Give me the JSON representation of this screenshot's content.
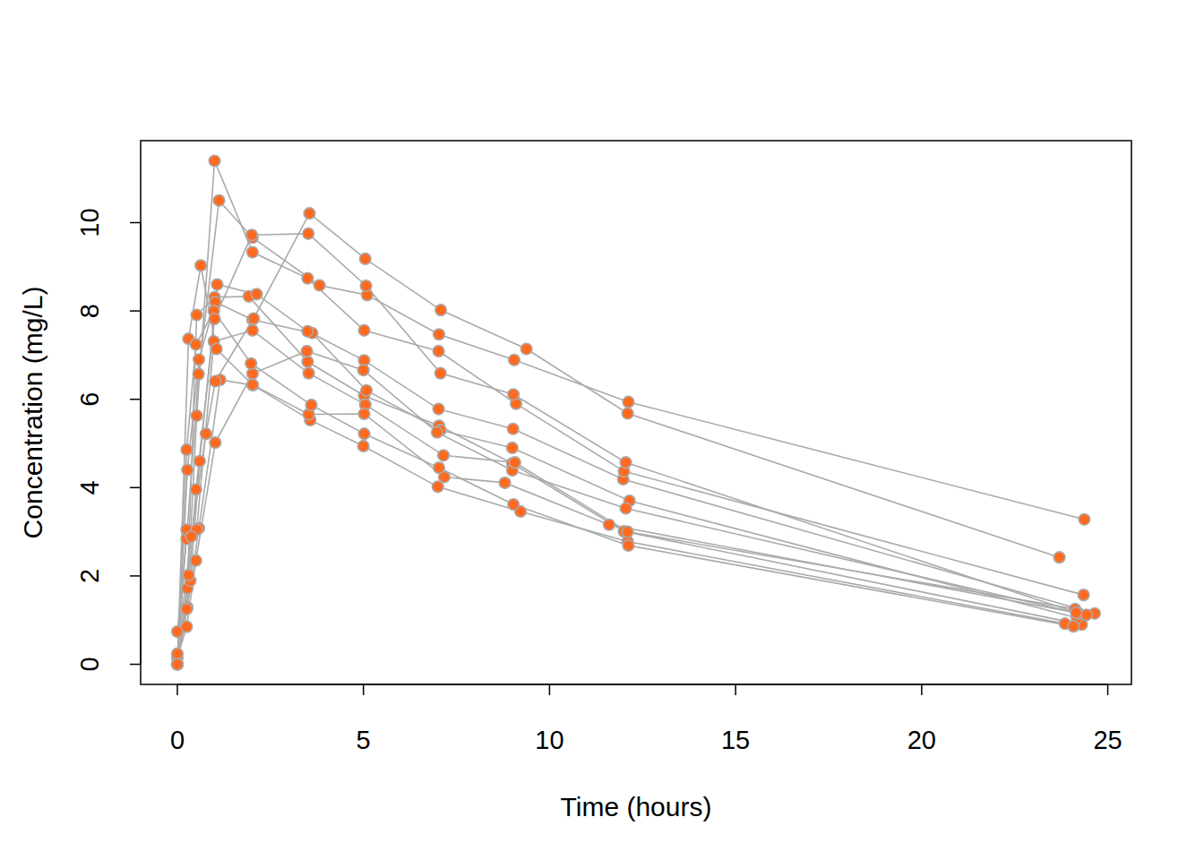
{
  "chart_data": {
    "type": "line",
    "x_label": "Time (hours)",
    "y_label": "Concentration (mg/L)",
    "xlim": [
      -0.986,
      25.636
    ],
    "ylim": [
      -0.456,
      11.856
    ],
    "xticks": [
      0,
      5,
      10,
      15,
      20,
      25
    ],
    "yticks": [
      0,
      2,
      4,
      6,
      8,
      10
    ],
    "grid": false,
    "marker": "circle",
    "line_style": "solid",
    "series": [
      {
        "color": "#ff6a1f",
        "x": [
          0,
          0.25,
          0.57,
          1.12,
          2.02,
          3.82,
          5.1,
          7.03,
          9.05,
          12.12,
          24.37
        ],
        "values": [
          0.74,
          2.84,
          6.57,
          10.5,
          9.66,
          8.58,
          8.36,
          7.47,
          6.89,
          5.94,
          3.28
        ]
      },
      {
        "color": "#ff6a1f",
        "x": [
          0,
          0.27,
          0.52,
          1.0,
          1.92,
          3.5,
          5.02,
          7.03,
          9.0,
          12.0,
          24.3
        ],
        "values": [
          0.0,
          1.72,
          7.91,
          8.31,
          8.33,
          6.85,
          6.08,
          5.4,
          4.55,
          3.01,
          0.9
        ]
      },
      {
        "color": "#ff6a1f",
        "x": [
          0,
          0.27,
          0.58,
          1.02,
          2.02,
          3.62,
          5.08,
          7.07,
          9.0,
          12.15,
          24.17
        ],
        "values": [
          0.0,
          4.4,
          6.9,
          8.2,
          7.8,
          7.5,
          6.2,
          5.3,
          4.9,
          3.7,
          1.05
        ]
      },
      {
        "color": "#ff6a1f",
        "x": [
          0,
          0.35,
          0.6,
          1.07,
          2.13,
          3.5,
          5.02,
          7.02,
          9.02,
          11.98,
          24.65
        ],
        "values": [
          0.0,
          1.89,
          4.6,
          8.6,
          8.38,
          7.54,
          6.88,
          5.78,
          5.33,
          4.19,
          1.15
        ]
      },
      {
        "color": "#ff6a1f",
        "x": [
          0,
          0.3,
          0.52,
          1.0,
          2.02,
          3.5,
          5.02,
          7.02,
          9.1,
          12.0,
          24.35
        ],
        "values": [
          0.0,
          2.02,
          5.63,
          11.4,
          9.33,
          8.74,
          7.56,
          7.09,
          5.9,
          4.37,
          1.57
        ]
      },
      {
        "color": "#ff6a1f",
        "x": [
          0,
          0.27,
          0.58,
          1.15,
          2.03,
          3.57,
          5.0,
          7.0,
          9.22,
          12.1,
          23.85
        ],
        "values": [
          0.0,
          1.29,
          3.08,
          6.44,
          6.32,
          5.53,
          4.94,
          4.02,
          3.46,
          2.78,
          0.92
        ]
      },
      {
        "color": "#ff6a1f",
        "x": [
          0,
          0.25,
          0.5,
          1.02,
          2.02,
          3.48,
          5.0,
          6.98,
          9.0,
          12.05,
          24.22
        ],
        "values": [
          0.15,
          0.85,
          2.35,
          5.02,
          6.58,
          7.09,
          6.66,
          5.25,
          4.39,
          3.53,
          1.15
        ]
      },
      {
        "color": "#ff6a1f",
        "x": [
          0,
          0.25,
          0.52,
          0.98,
          2.02,
          3.53,
          5.05,
          7.15,
          9.07,
          12.1,
          24.12
        ],
        "values": [
          0.0,
          3.05,
          3.05,
          7.31,
          7.56,
          6.59,
          5.88,
          4.73,
          4.57,
          3.0,
          1.25
        ]
      },
      {
        "color": "#ff6a1f",
        "x": [
          0,
          0.3,
          0.63,
          1.05,
          2.02,
          3.53,
          5.02,
          7.17,
          8.8,
          11.6,
          24.43
        ],
        "values": [
          0.0,
          7.37,
          9.03,
          7.14,
          6.33,
          5.66,
          5.67,
          4.24,
          4.11,
          3.16,
          1.12
        ]
      },
      {
        "color": "#ff6a1f",
        "x": [
          0,
          0.37,
          0.77,
          1.02,
          2.05,
          3.55,
          5.05,
          7.08,
          9.38,
          12.1,
          23.7
        ],
        "values": [
          0.24,
          2.89,
          5.22,
          6.41,
          7.83,
          10.21,
          9.18,
          8.02,
          7.14,
          5.68,
          2.42
        ]
      },
      {
        "color": "#ff6a1f",
        "x": [
          0,
          0.25,
          0.5,
          0.98,
          1.98,
          3.6,
          5.02,
          7.03,
          9.03,
          12.12,
          24.08
        ],
        "values": [
          0.0,
          4.86,
          7.24,
          8.0,
          6.81,
          5.87,
          5.22,
          4.45,
          3.62,
          2.69,
          0.86
        ]
      },
      {
        "color": "#ff6a1f",
        "x": [
          0,
          0.25,
          0.5,
          1.0,
          2.0,
          3.52,
          5.07,
          7.07,
          9.03,
          12.05,
          24.15
        ],
        "values": [
          0.0,
          1.25,
          3.96,
          7.82,
          9.72,
          9.75,
          8.57,
          6.59,
          6.11,
          4.57,
          1.17
        ]
      }
    ]
  }
}
